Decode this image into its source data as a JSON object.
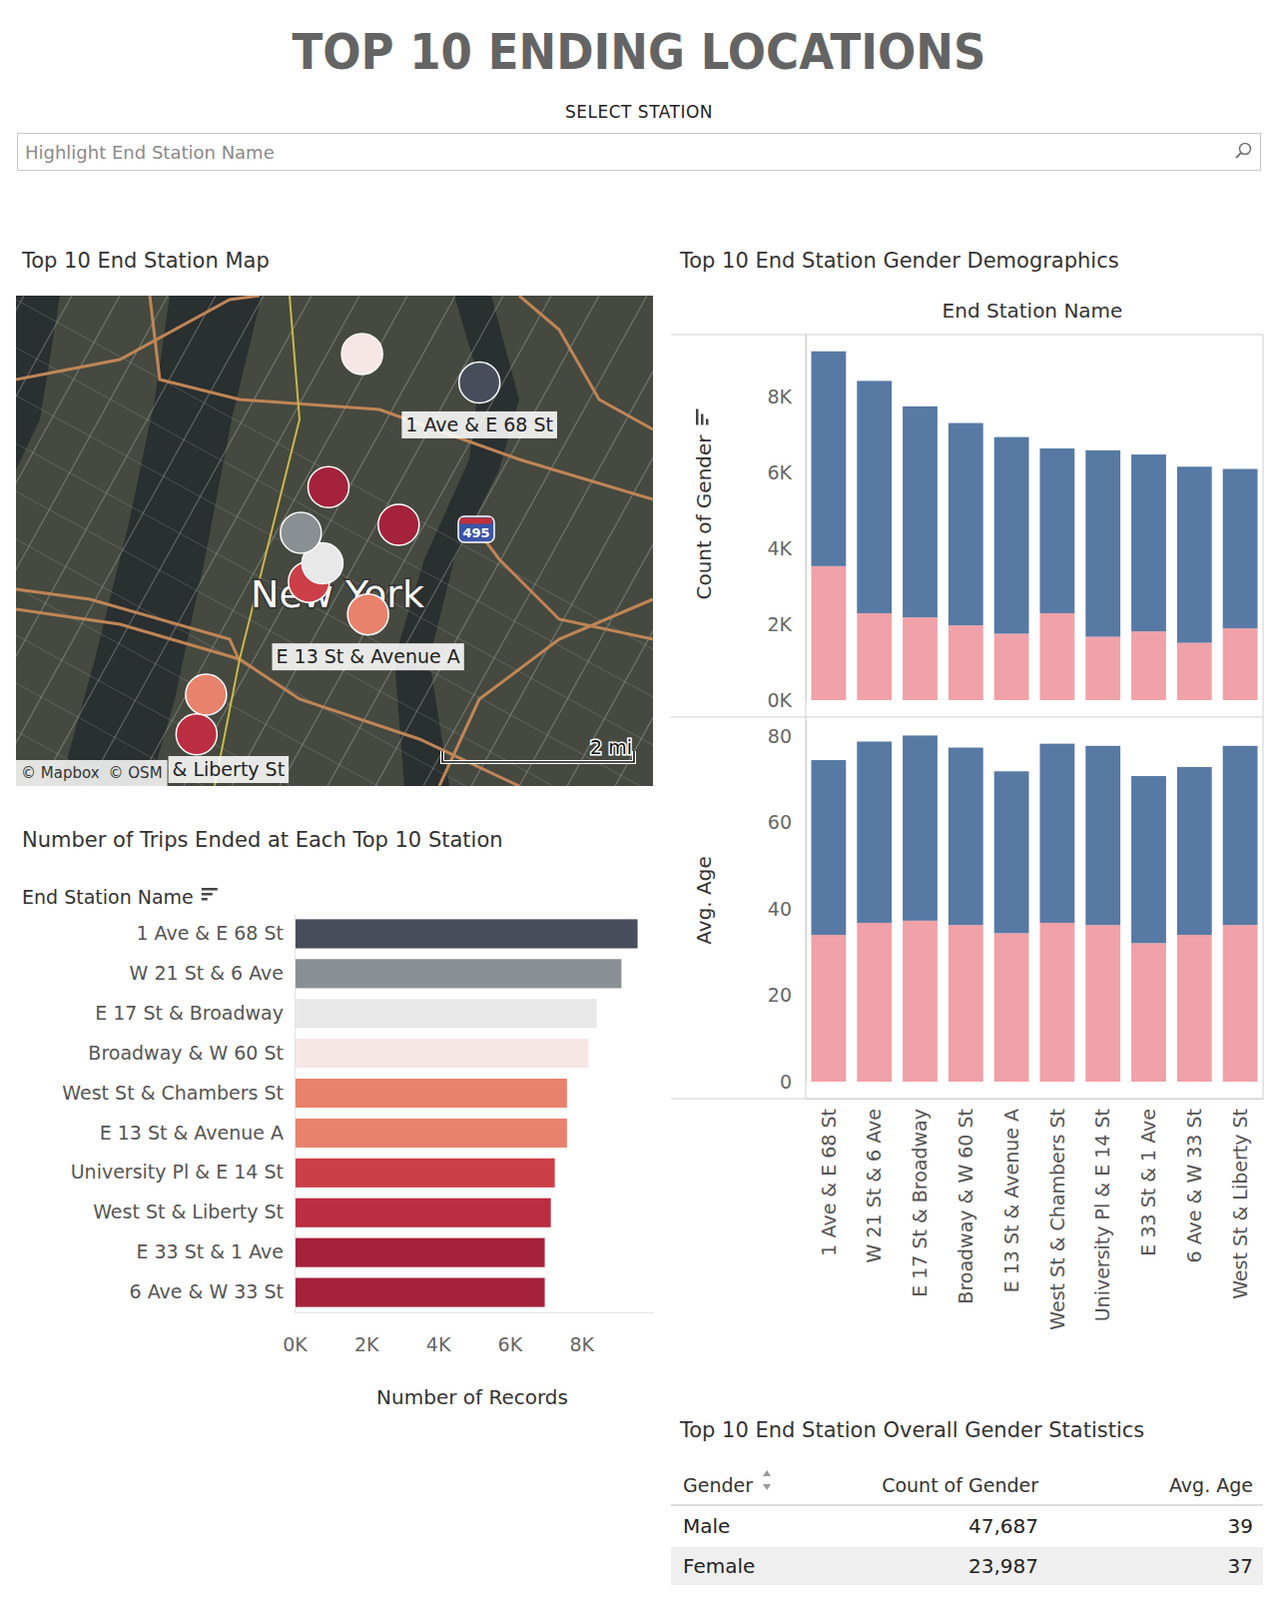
{
  "page": {
    "title": "TOP 10 ENDING LOCATIONS",
    "select_label": "SELECT STATION",
    "search_placeholder": "Highlight End Station Name"
  },
  "chart_data": [
    {
      "type": "map",
      "title": "Top 10 End Station Map",
      "x": [
        -73.9582,
        -73.9938,
        -73.9895,
        -73.9816,
        -74.0127,
        -73.9804,
        -73.9922,
        -74.0146,
        -73.9743,
        -73.9883
      ],
      "values": [
        40.7649,
        40.7422,
        40.7376,
        40.7692,
        40.7178,
        40.7299,
        40.7348,
        40.7118,
        40.7434,
        40.7491
      ],
      "colors": [
        "#474d5b",
        "#898f93",
        "#e8e8e8",
        "#f6e6e6",
        "#e8826c",
        "#e8826c",
        "#cc3f48",
        "#bb2d40",
        "#a5223b",
        "#a5223b"
      ],
      "labels": [
        "1 Ave & E 68 St",
        null,
        null,
        null,
        null,
        "E 13 St & Avenue A",
        null,
        "& Liberty St",
        null,
        null
      ],
      "xlim": [
        -74.0506,
        -73.9236
      ],
      "ylim": [
        40.704,
        40.778
      ],
      "tick_labels": false,
      "place_label": "New York",
      "road_label": "495",
      "attribution": [
        "© Mapbox",
        "© OSM"
      ],
      "scale_label": "2 mi"
    },
    {
      "type": "bar",
      "orientation": "horizontal",
      "title": "Number of Trips Ended at Each Top 10 Station",
      "ylabel": "End Station Name",
      "xlabel": "Number of Records",
      "categories": [
        "1 Ave & E 68 St",
        "W 21 St & 6 Ave",
        "E 17 St & Broadway",
        "Broadway & W 60 St",
        "West St & Chambers St",
        "E 13 St & Avenue A",
        "University Pl & E 14 St",
        "West St & Liberty St",
        "E 33 St & 1 Ave",
        "6 Ave & W 33 St"
      ],
      "values": [
        9570,
        9120,
        8430,
        8200,
        7600,
        7600,
        7260,
        7150,
        6980,
        6980
      ],
      "colors": [
        "#474d5b",
        "#898f93",
        "#e8e8e8",
        "#f6e6e6",
        "#e8826c",
        "#e8826c",
        "#cc3f48",
        "#bb2d40",
        "#a5223b",
        "#a5223b"
      ],
      "xlim": [
        0,
        10000
      ],
      "xticks": [
        {
          "value": 0,
          "label": "0K"
        },
        {
          "value": 2000,
          "label": "2K"
        },
        {
          "value": 4000,
          "label": "4K"
        },
        {
          "value": 6000,
          "label": "6K"
        },
        {
          "value": 8000,
          "label": "8K"
        }
      ],
      "grid": false
    },
    {
      "type": "bar",
      "stacked": true,
      "title": "Top 10 End Station Gender Demographics",
      "xlabel": "End Station Name",
      "ylabel": "Count of Gender",
      "categories": [
        "1 Ave & E 68 St",
        "W 21 St & 6 Ave",
        "E 17 St & Broadway",
        "Broadway & W 60 St",
        "E 13 St & Avenue A",
        "West St & Chambers St",
        "University Pl & E 14 St",
        "E 33 St & 1 Ave",
        "6 Ave & W 33 St",
        "West St & Liberty St"
      ],
      "series": [
        {
          "color": "#f1a1a8",
          "values": [
            3530,
            2290,
            2180,
            1970,
            1750,
            2290,
            1670,
            1810,
            1510,
            1890
          ]
        },
        {
          "color": "#5779a4",
          "values": [
            5660,
            6120,
            5560,
            5330,
            5180,
            4340,
            4910,
            4660,
            4640,
            4200
          ]
        }
      ],
      "ylim": [
        0,
        9630
      ],
      "yticks": [
        {
          "value": 0,
          "label": "0K"
        },
        {
          "value": 2000,
          "label": "2K"
        },
        {
          "value": 4000,
          "label": "4K"
        },
        {
          "value": 6000,
          "label": "6K"
        },
        {
          "value": 8000,
          "label": "8K"
        }
      ],
      "tick_labels": "y",
      "grid": false
    },
    {
      "type": "bar",
      "stacked": true,
      "ylabel": "Avg. Age",
      "categories": [
        "1 Ave & E 68 St",
        "W 21 St & 6 Ave",
        "E 17 St & Broadway",
        "Broadway & W 60 St",
        "E 13 St & Avenue A",
        "West St & Chambers St",
        "University Pl & E 14 St",
        "E 33 St & 1 Ave",
        "6 Ave & W 33 St",
        "West St & Liberty St"
      ],
      "series": [
        {
          "color": "#f1a1a8",
          "values": [
            34.0,
            36.8,
            37.3,
            36.3,
            34.4,
            36.8,
            36.3,
            32.1,
            34.0,
            36.3
          ]
        },
        {
          "color": "#5779a4",
          "values": [
            40.5,
            42.0,
            42.9,
            41.1,
            37.5,
            41.5,
            41.5,
            38.7,
            38.9,
            41.5
          ]
        }
      ],
      "ylim": [
        0,
        84
      ],
      "yticks": [
        0,
        20,
        40,
        60,
        80
      ],
      "grid": false
    }
  ],
  "table": {
    "title": "Top 10 End Station Overall Gender Statistics",
    "columns": [
      "Gender",
      "Count of Gender",
      "Avg. Age"
    ],
    "rows": [
      [
        "Male",
        "47,687",
        39
      ],
      [
        "Female",
        "23,987",
        37
      ]
    ]
  }
}
